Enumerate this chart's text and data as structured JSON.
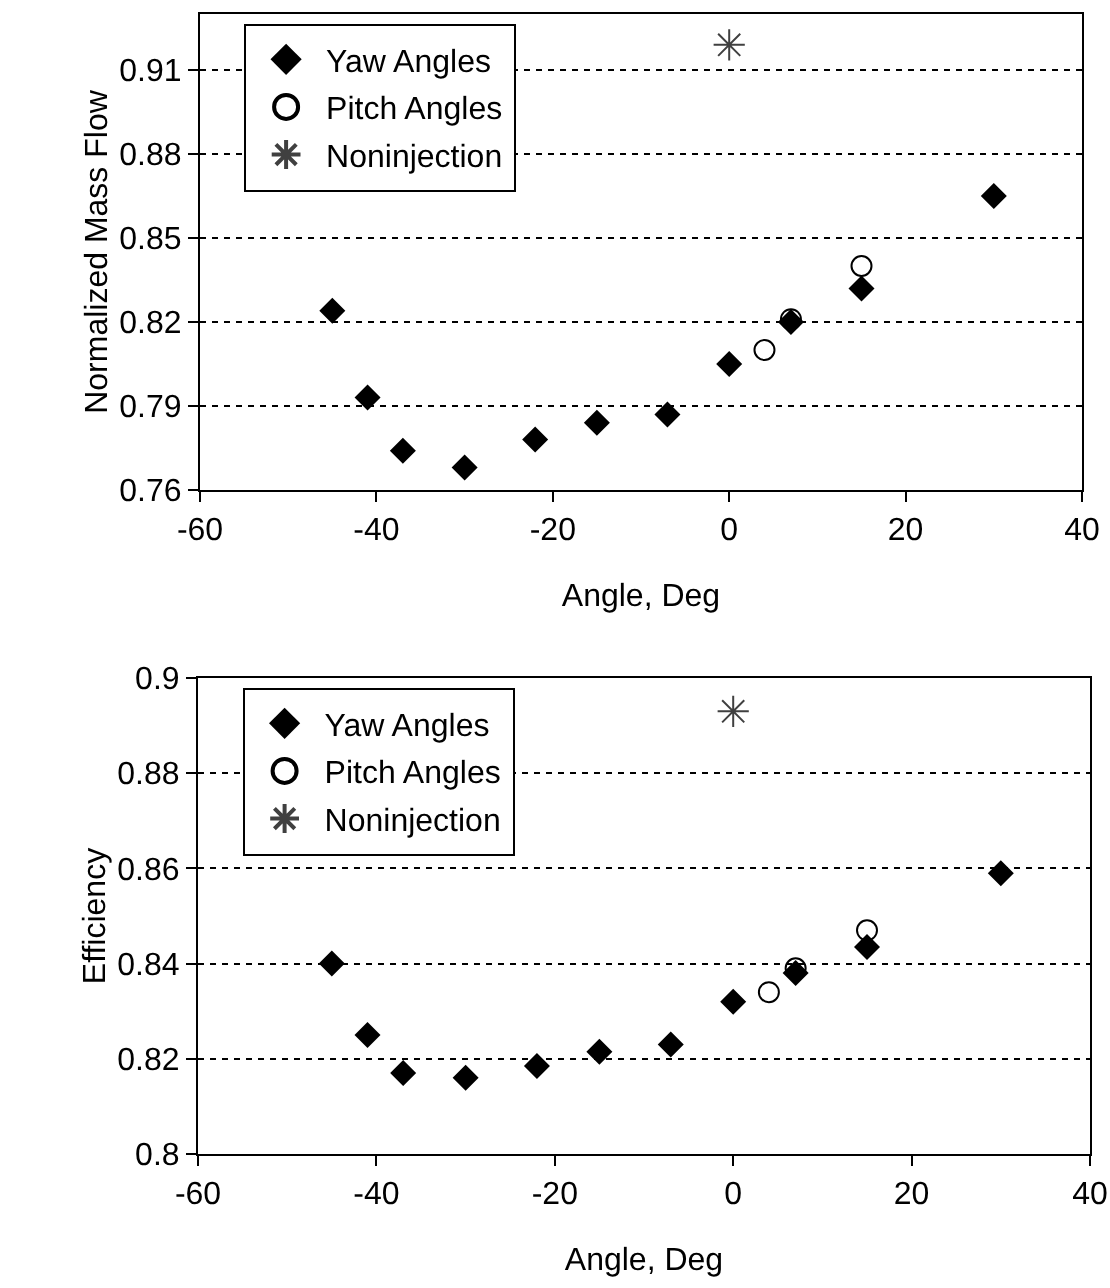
{
  "chart_data": [
    {
      "type": "scatter",
      "xlabel": "Angle, Deg",
      "ylabel": "Normalized Mass Flow",
      "xlim": [
        -60,
        40
      ],
      "xticks": [
        -60,
        -40,
        -20,
        0,
        20,
        40
      ],
      "ylim": [
        0.76,
        0.93
      ],
      "yticks": [
        0.76,
        0.79,
        0.82,
        0.85,
        0.88,
        0.91
      ],
      "grid": "y",
      "legend": "top left",
      "series": [
        {
          "name": "Yaw Angles",
          "color": "#000000",
          "marker": "diamond",
          "x": [
            -45,
            -41,
            -37,
            -30,
            -22,
            -15,
            -7,
            0,
            7,
            15,
            30
          ],
          "values": [
            0.824,
            0.793,
            0.774,
            0.768,
            0.778,
            0.784,
            0.787,
            0.805,
            0.82,
            0.832,
            0.865
          ]
        },
        {
          "name": "Pitch Angles",
          "color": "#000000",
          "marker": "circle",
          "x": [
            4,
            7,
            15
          ],
          "values": [
            0.81,
            0.821,
            0.84
          ]
        },
        {
          "name": "Noninjection",
          "color": "#404040",
          "marker": "cross",
          "x": [
            0
          ],
          "values": [
            0.919
          ]
        }
      ]
    },
    {
      "type": "scatter",
      "xlabel": "Angle, Deg",
      "ylabel": "Efficiency",
      "xlim": [
        -60,
        40
      ],
      "xticks": [
        -60,
        -40,
        -20,
        0,
        20,
        40
      ],
      "ylim": [
        0.8,
        0.9
      ],
      "yticks": [
        0.8,
        0.82,
        0.84,
        0.86,
        0.88,
        0.9
      ],
      "grid": "y",
      "legend": "top left",
      "series": [
        {
          "name": "Yaw Angles",
          "color": "#000000",
          "marker": "diamond",
          "x": [
            -45,
            -41,
            -37,
            -30,
            -22,
            -15,
            -7,
            0,
            7,
            15,
            30
          ],
          "values": [
            0.84,
            0.825,
            0.817,
            0.816,
            0.8185,
            0.8215,
            0.823,
            0.832,
            0.838,
            0.8435,
            0.859
          ]
        },
        {
          "name": "Pitch Angles",
          "color": "#000000",
          "marker": "circle",
          "x": [
            4,
            7,
            15
          ],
          "values": [
            0.834,
            0.839,
            0.847
          ]
        },
        {
          "name": "Noninjection",
          "color": "#404040",
          "marker": "cross",
          "x": [
            0
          ],
          "values": [
            0.893
          ]
        }
      ]
    }
  ]
}
